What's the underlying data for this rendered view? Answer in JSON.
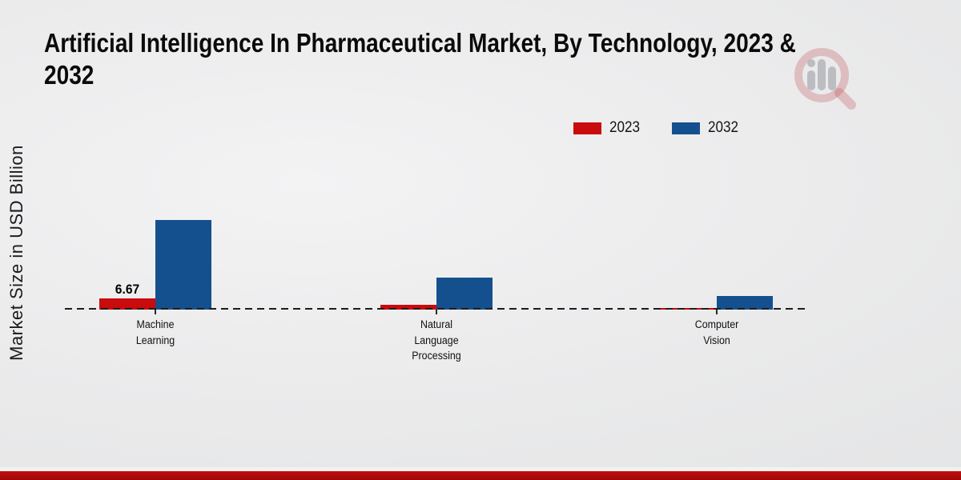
{
  "title": "Artificial Intelligence In Pharmaceutical Market, By Technology, 2023 & 2032",
  "title_lines": [
    "Artificial Intelligence In Pharmaceutical Market, By Technology, 2023 &",
    "2032"
  ],
  "ylabel": "Market Size in USD Billion",
  "watermark_icon": "magnifier-bar-chart-logo",
  "footer_bar_color": "#b90b0b",
  "chart_data": {
    "type": "bar",
    "title": "Artificial Intelligence In Pharmaceutical Market, By Technology, 2023 & 2032",
    "xlabel": "",
    "ylabel": "Market Size in USD Billion",
    "categories": [
      "Machine Learning",
      "Natural Language Processing",
      "Computer Vision"
    ],
    "category_lines": [
      [
        "Machine",
        "Learning"
      ],
      [
        "Natural",
        "Language",
        "Processing"
      ],
      [
        "Computer",
        "Vision"
      ]
    ],
    "series": [
      {
        "name": "2023",
        "color": "#c90b0d",
        "values": [
          6.67,
          2.9,
          0.9
        ]
      },
      {
        "name": "2032",
        "color": "#15508e",
        "values": [
          53.4,
          19.1,
          8.1
        ]
      }
    ],
    "value_labels": [
      {
        "series_index": 0,
        "category_index": 0,
        "text": "6.67"
      }
    ],
    "baseline_value": 0,
    "ylim": [
      0,
      60
    ],
    "grid": "dashed zero line only, no y-axis ticks",
    "legend_position": "top-right"
  }
}
